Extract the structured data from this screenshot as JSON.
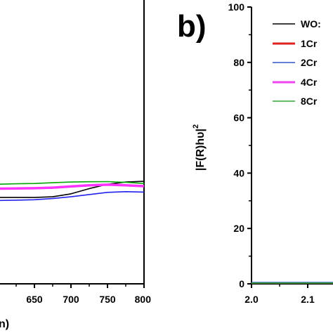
{
  "chart_data": [
    {
      "panel": "a",
      "type": "line",
      "xlim": [
        550,
        800
      ],
      "x_ticks": [
        "650",
        "700",
        "750",
        "800"
      ],
      "x_axis_label_fragment": "n)",
      "grid": false,
      "series": [
        {
          "color": "#000000",
          "x": [
            550,
            575,
            600,
            625,
            650,
            675,
            700,
            725,
            750,
            775,
            800
          ],
          "y": [
            0.6,
            0.59,
            0.585,
            0.585,
            0.585,
            0.59,
            0.61,
            0.645,
            0.675,
            0.69,
            0.695
          ]
        },
        {
          "color": "#ff33ff",
          "x": [
            550,
            575,
            600,
            625,
            650,
            675,
            700,
            725,
            750,
            775,
            800
          ],
          "y": [
            0.65,
            0.645,
            0.645,
            0.646,
            0.648,
            0.652,
            0.66,
            0.668,
            0.672,
            0.668,
            0.662
          ]
        },
        {
          "color": "#2222ee",
          "x": [
            550,
            575,
            600,
            625,
            650,
            675,
            700,
            725,
            750,
            775,
            800
          ],
          "y": [
            0.57,
            0.565,
            0.565,
            0.567,
            0.57,
            0.578,
            0.59,
            0.605,
            0.62,
            0.625,
            0.622
          ]
        },
        {
          "color": "#00aa00",
          "x": [
            550,
            575,
            600,
            625,
            650,
            675,
            700,
            725,
            750,
            775,
            800
          ],
          "y": [
            0.675,
            0.675,
            0.675,
            0.678,
            0.68,
            0.685,
            0.69,
            0.692,
            0.693,
            0.688,
            0.68
          ]
        }
      ]
    },
    {
      "panel": "b",
      "panel_letter": "b)",
      "type": "line",
      "xlim": [
        2.0,
        2.3
      ],
      "ylim": [
        0,
        100
      ],
      "x_ticks": [
        "2.0",
        "2.1",
        "2"
      ],
      "y_ticks": [
        "0",
        "20",
        "40",
        "60",
        "80",
        "100"
      ],
      "ylabel": "|F(R)hυ|",
      "ylabel_sup": "2",
      "grid": false,
      "legend_position": "top-right",
      "series": [
        {
          "name": "WO",
          "color": "#000000",
          "x": [
            2.0,
            2.3
          ],
          "y": [
            0.3,
            0.3
          ]
        },
        {
          "name": "1Cr",
          "color": "#dd2222",
          "x": [
            2.0,
            2.3
          ],
          "y": [
            0.3,
            0.3
          ]
        },
        {
          "name": "2Cr",
          "color": "#3355cc",
          "x": [
            2.0,
            2.3
          ],
          "y": [
            0.5,
            0.5
          ]
        },
        {
          "name": "4Cr",
          "color": "#ee44ee",
          "x": [
            2.0,
            2.3
          ],
          "y": [
            0.3,
            0.3
          ]
        },
        {
          "name": "8Cr",
          "color": "#33aa33",
          "x": [
            2.0,
            2.3
          ],
          "y": [
            0.3,
            0.3
          ]
        }
      ],
      "legend_labels": [
        "WO:",
        "1Cr",
        "2Cr",
        "4Cr",
        "8Cr"
      ]
    }
  ]
}
